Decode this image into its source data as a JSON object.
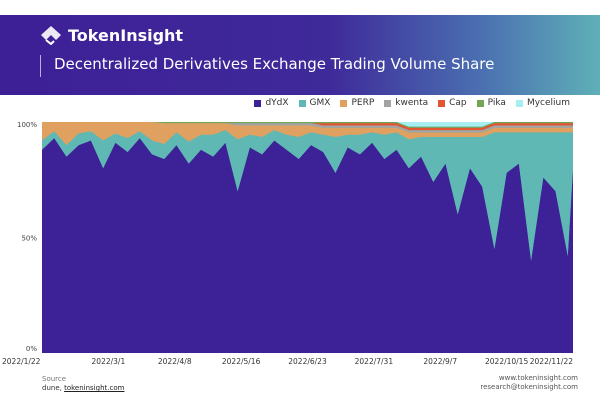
{
  "header": {
    "brand": "TokenInsight",
    "title": "Decentralized Derivatives Exchange Trading Volume Share"
  },
  "footer": {
    "source_label": "Source",
    "source_text": "dune, ",
    "source_link": "tokeninsight.com",
    "website": "www.tokeninsight.com",
    "email": "research@tokeninsight.com"
  },
  "chart_data": {
    "type": "area",
    "stacked": true,
    "title": "Decentralized Derivatives Exchange Trading Volume Share",
    "xlabel": "",
    "ylabel": "",
    "ylim": [
      0,
      100
    ],
    "y_ticks": [
      "0%",
      "50%",
      "100%"
    ],
    "x_ticks": [
      "2022/1/22",
      "2022/3/1",
      "2022/4/8",
      "2022/5/16",
      "2022/6/23",
      "2022/7/31",
      "2022/9/7",
      "2022/10/15",
      "2022/11/22"
    ],
    "legend_position": "top-right",
    "grid": false,
    "x": [
      "2022-01-22",
      "2022-01-29",
      "2022-02-05",
      "2022-02-12",
      "2022-02-19",
      "2022-02-26",
      "2022-03-05",
      "2022-03-12",
      "2022-03-19",
      "2022-03-26",
      "2022-04-02",
      "2022-04-09",
      "2022-04-16",
      "2022-04-23",
      "2022-04-30",
      "2022-05-07",
      "2022-05-14",
      "2022-05-21",
      "2022-05-28",
      "2022-06-04",
      "2022-06-11",
      "2022-06-18",
      "2022-06-25",
      "2022-07-02",
      "2022-07-09",
      "2022-07-16",
      "2022-07-23",
      "2022-07-30",
      "2022-08-06",
      "2022-08-13",
      "2022-08-20",
      "2022-08-27",
      "2022-09-03",
      "2022-09-10",
      "2022-09-17",
      "2022-09-24",
      "2022-10-01",
      "2022-10-08",
      "2022-10-15",
      "2022-10-22",
      "2022-10-29",
      "2022-11-05",
      "2022-11-12",
      "2022-11-19",
      "2022-11-22"
    ],
    "series": [
      {
        "name": "dYdX",
        "color": "#3d2196",
        "values": [
          88,
          93,
          85,
          90,
          92,
          80,
          91,
          87,
          93,
          86,
          84,
          90,
          82,
          88,
          85,
          91,
          70,
          89,
          86,
          92,
          88,
          84,
          90,
          87,
          78,
          89,
          86,
          91,
          84,
          88,
          80,
          85,
          74,
          82,
          60,
          80,
          72,
          45,
          78,
          82,
          40,
          76,
          70,
          42,
          80
        ]
      },
      {
        "name": "GMX",
        "color": "#5fb8b4",
        "values": [
          4,
          3,
          5,
          5,
          4,
          12,
          4,
          6,
          3,
          6,
          6.5,
          5.5,
          9.5,
          6.5,
          9.5,
          5.5,
          22.5,
          5.5,
          7.5,
          4.5,
          6.5,
          9.5,
          5.5,
          7.5,
          15.5,
          5.5,
          8.5,
          4.5,
          10.5,
          7.5,
          12.5,
          8.5,
          19.5,
          11.5,
          33.5,
          13.5,
          21.5,
          50.5,
          17.5,
          13.5,
          55.5,
          19.5,
          25.5,
          53.5,
          15.5
        ]
      },
      {
        "name": "PERP",
        "color": "#e0a060",
        "values": [
          8,
          4,
          10,
          5,
          4,
          8,
          5,
          7,
          4,
          8,
          9,
          4,
          8,
          5,
          5,
          3,
          6,
          4,
          5,
          2,
          4,
          5,
          3,
          3,
          4,
          3,
          3,
          2,
          3,
          2,
          3,
          2,
          2,
          2,
          2,
          2,
          2,
          2,
          2,
          2,
          2,
          2,
          2,
          2,
          2
        ]
      },
      {
        "name": "kwenta",
        "color": "#a3a3a3",
        "values": [
          0,
          0,
          0,
          0,
          0,
          0,
          0,
          0,
          0,
          0,
          0,
          0,
          0,
          0,
          0,
          0,
          1,
          1,
          1,
          1,
          1,
          1,
          1,
          1,
          1,
          1,
          1,
          1,
          1,
          1,
          1,
          1,
          1,
          1,
          1,
          1,
          1,
          1,
          1,
          1,
          1,
          1,
          1,
          1,
          1
        ]
      },
      {
        "name": "Cap",
        "color": "#e25530",
        "values": [
          0,
          0,
          0,
          0,
          0,
          0,
          0,
          0,
          0,
          0,
          0,
          0,
          0,
          0,
          0,
          0,
          0,
          0,
          0,
          0,
          0,
          0,
          0,
          1,
          1,
          1,
          1,
          1,
          1,
          1,
          1,
          1,
          1,
          1,
          1,
          1,
          1,
          1,
          1,
          1,
          1,
          1,
          1,
          1,
          1
        ]
      },
      {
        "name": "Pika",
        "color": "#72a554",
        "values": [
          0,
          0,
          0,
          0,
          0,
          0,
          0,
          0,
          0,
          0,
          0.5,
          0.5,
          0.5,
          0.5,
          0.5,
          0.5,
          0.5,
          0.5,
          0.5,
          0.5,
          0.5,
          0.5,
          0.5,
          0.5,
          0.5,
          0.5,
          0.5,
          0.5,
          0.5,
          0.5,
          0.5,
          0.5,
          0.5,
          0.5,
          0.5,
          0.5,
          0.5,
          0.5,
          0.5,
          0.5,
          0.5,
          0.5,
          0.5,
          0.5,
          0.5
        ]
      },
      {
        "name": "Mycelium",
        "color": "#a6eef2",
        "values": [
          0,
          0,
          0,
          0,
          0,
          0,
          0,
          0,
          0,
          0,
          0,
          0,
          0,
          0,
          0,
          0,
          0,
          0,
          0,
          0,
          0,
          0,
          0,
          0,
          0,
          0,
          0,
          0,
          0,
          0,
          2,
          2,
          2,
          2,
          2,
          2,
          2,
          0,
          0,
          0,
          0,
          0,
          0,
          0,
          0
        ]
      }
    ]
  }
}
